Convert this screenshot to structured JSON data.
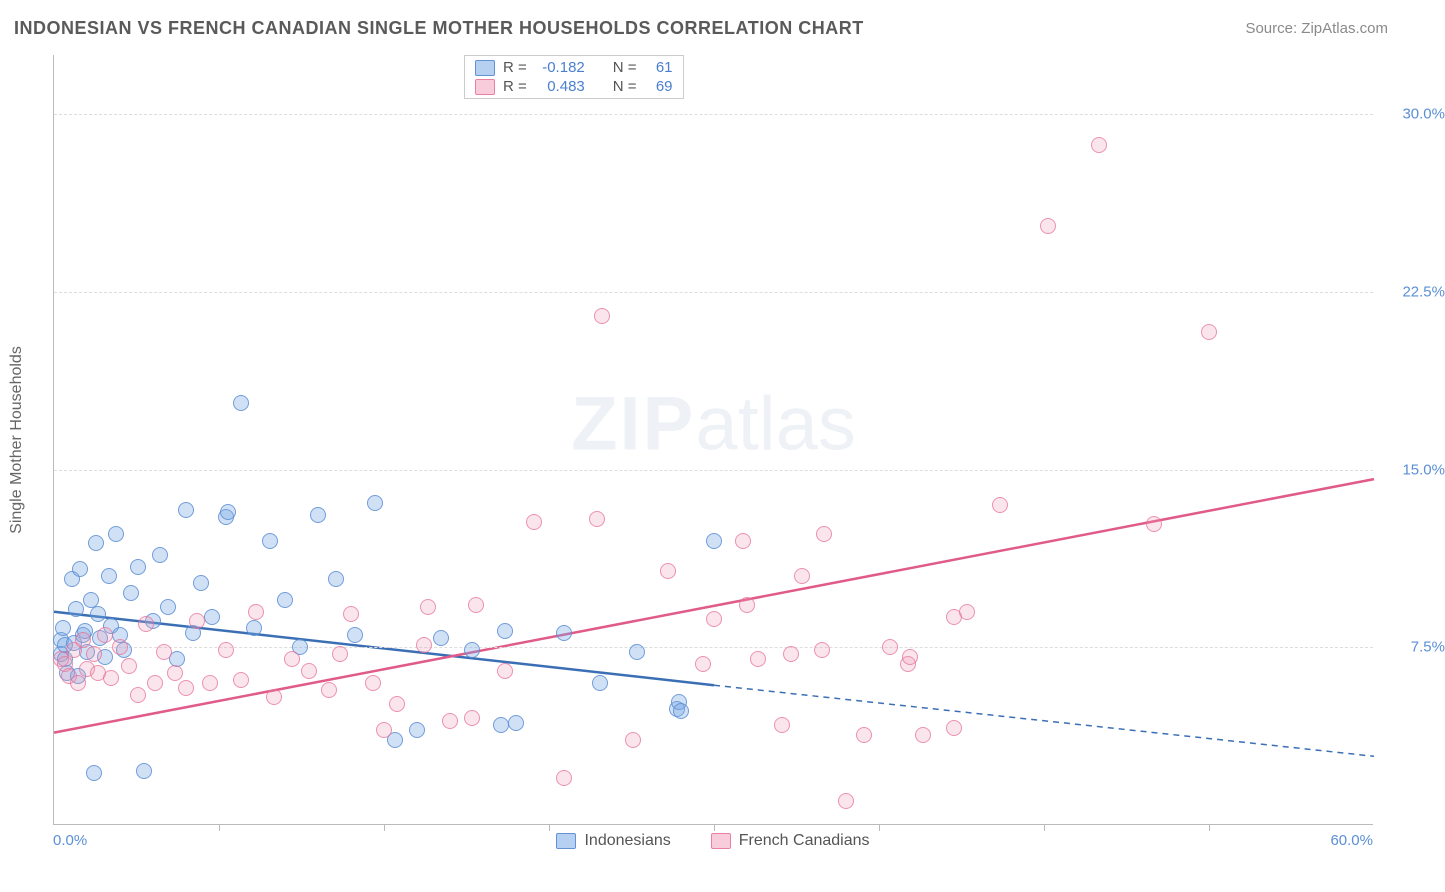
{
  "title": "INDONESIAN VS FRENCH CANADIAN SINGLE MOTHER HOUSEHOLDS CORRELATION CHART",
  "source": "Source: ZipAtlas.com",
  "ylabel": "Single Mother Households",
  "watermark_zip": "ZIP",
  "watermark_atlas": "atlas",
  "chart": {
    "type": "scatter",
    "xlim": [
      0,
      60
    ],
    "ylim": [
      0,
      32.5
    ],
    "x_axis": {
      "min_label": "0.0%",
      "max_label": "60.0%",
      "tick_positions": [
        7.5,
        15,
        22.5,
        30,
        37.5,
        45,
        52.5
      ]
    },
    "y_axis": {
      "gridlines": [
        {
          "value": 7.5,
          "label": "7.5%"
        },
        {
          "value": 15.0,
          "label": "15.0%"
        },
        {
          "value": 22.5,
          "label": "22.5%"
        },
        {
          "value": 30.0,
          "label": "30.0%"
        }
      ]
    },
    "background_color": "#ffffff",
    "grid_color": "#dddddd",
    "series": [
      {
        "name": "Indonesians",
        "class": "blue",
        "fill": "rgba(120,170,230,0.35)",
        "stroke": "rgba(90,140,210,0.8)",
        "r_label": "R =",
        "r_value": "-0.182",
        "n_label": "N =",
        "n_value": "61",
        "regression": {
          "solid": {
            "x1": 0,
            "y1": 9.0,
            "x2": 30,
            "y2": 5.9
          },
          "dashed": {
            "x1": 30,
            "y1": 5.9,
            "x2": 60,
            "y2": 2.9
          },
          "color": "#3b6fb5",
          "width": 2.5
        },
        "points": [
          [
            0.3,
            7.8
          ],
          [
            0.3,
            7.2
          ],
          [
            0.4,
            8.3
          ],
          [
            0.5,
            7.0
          ],
          [
            0.5,
            7.6
          ],
          [
            0.6,
            6.4
          ],
          [
            0.8,
            10.4
          ],
          [
            0.9,
            7.7
          ],
          [
            1.0,
            9.1
          ],
          [
            1.1,
            6.3
          ],
          [
            1.2,
            10.8
          ],
          [
            1.3,
            8.0
          ],
          [
            1.4,
            8.2
          ],
          [
            1.5,
            7.3
          ],
          [
            1.7,
            9.5
          ],
          [
            1.8,
            2.2
          ],
          [
            1.9,
            11.9
          ],
          [
            2.0,
            8.9
          ],
          [
            2.1,
            7.9
          ],
          [
            2.3,
            7.1
          ],
          [
            2.5,
            10.5
          ],
          [
            2.6,
            8.4
          ],
          [
            2.8,
            12.3
          ],
          [
            3.0,
            8.0
          ],
          [
            3.2,
            7.4
          ],
          [
            3.5,
            9.8
          ],
          [
            3.8,
            10.9
          ],
          [
            4.1,
            2.3
          ],
          [
            4.5,
            8.6
          ],
          [
            4.8,
            11.4
          ],
          [
            5.2,
            9.2
          ],
          [
            5.6,
            7.0
          ],
          [
            6.0,
            13.3
          ],
          [
            6.3,
            8.1
          ],
          [
            6.7,
            10.2
          ],
          [
            7.2,
            8.8
          ],
          [
            7.8,
            13.0
          ],
          [
            7.9,
            13.2
          ],
          [
            8.5,
            17.8
          ],
          [
            9.1,
            8.3
          ],
          [
            9.8,
            12.0
          ],
          [
            10.5,
            9.5
          ],
          [
            11.2,
            7.5
          ],
          [
            12.0,
            13.1
          ],
          [
            12.8,
            10.4
          ],
          [
            13.7,
            8.0
          ],
          [
            14.6,
            13.6
          ],
          [
            15.5,
            3.6
          ],
          [
            16.5,
            4.0
          ],
          [
            17.6,
            7.9
          ],
          [
            19.0,
            7.4
          ],
          [
            20.3,
            4.2
          ],
          [
            20.5,
            8.2
          ],
          [
            21.0,
            4.3
          ],
          [
            23.2,
            8.1
          ],
          [
            24.8,
            6.0
          ],
          [
            26.5,
            7.3
          ],
          [
            28.3,
            4.9
          ],
          [
            28.4,
            5.2
          ],
          [
            28.5,
            4.8
          ],
          [
            30.0,
            12.0
          ]
        ]
      },
      {
        "name": "French Canadians",
        "class": "pink",
        "fill": "rgba(240,150,180,0.25)",
        "stroke": "rgba(230,110,150,0.7)",
        "r_label": "R =",
        "r_value": "0.483",
        "n_label": "N =",
        "n_value": "69",
        "regression": {
          "solid": {
            "x1": 0,
            "y1": 3.9,
            "x2": 60,
            "y2": 14.6
          },
          "color": "#e05a8a",
          "width": 2.5
        },
        "points": [
          [
            0.3,
            7.0
          ],
          [
            0.5,
            6.8
          ],
          [
            0.7,
            6.3
          ],
          [
            0.9,
            7.4
          ],
          [
            1.1,
            6.0
          ],
          [
            1.3,
            7.8
          ],
          [
            1.5,
            6.6
          ],
          [
            1.8,
            7.2
          ],
          [
            2.0,
            6.4
          ],
          [
            2.3,
            8.0
          ],
          [
            2.6,
            6.2
          ],
          [
            3.0,
            7.5
          ],
          [
            3.4,
            6.7
          ],
          [
            3.8,
            5.5
          ],
          [
            4.2,
            8.5
          ],
          [
            4.6,
            6.0
          ],
          [
            5.0,
            7.3
          ],
          [
            5.5,
            6.4
          ],
          [
            6.0,
            5.8
          ],
          [
            6.5,
            8.6
          ],
          [
            7.1,
            6.0
          ],
          [
            7.8,
            7.4
          ],
          [
            8.5,
            6.1
          ],
          [
            9.2,
            9.0
          ],
          [
            10.0,
            5.4
          ],
          [
            10.8,
            7.0
          ],
          [
            11.6,
            6.5
          ],
          [
            12.5,
            5.7
          ],
          [
            13.5,
            8.9
          ],
          [
            14.5,
            6.0
          ],
          [
            15.6,
            5.1
          ],
          [
            16.8,
            7.6
          ],
          [
            18.0,
            4.4
          ],
          [
            19.2,
            9.3
          ],
          [
            20.5,
            6.5
          ],
          [
            21.8,
            12.8
          ],
          [
            23.2,
            2.0
          ],
          [
            24.7,
            12.9
          ],
          [
            24.9,
            21.5
          ],
          [
            26.3,
            3.6
          ],
          [
            27.9,
            10.7
          ],
          [
            29.5,
            6.8
          ],
          [
            31.3,
            12.0
          ],
          [
            33.1,
            4.2
          ],
          [
            34.9,
            7.4
          ],
          [
            35.0,
            12.3
          ],
          [
            36.8,
            3.8
          ],
          [
            38.8,
            6.8
          ],
          [
            38.9,
            7.1
          ],
          [
            40.9,
            4.1
          ],
          [
            40.9,
            8.8
          ],
          [
            43.0,
            13.5
          ],
          [
            45.2,
            25.3
          ],
          [
            47.5,
            28.7
          ],
          [
            50.0,
            12.7
          ],
          [
            52.5,
            20.8
          ],
          [
            36.0,
            1.0
          ],
          [
            30.0,
            8.7
          ],
          [
            32.0,
            7.0
          ],
          [
            34.0,
            10.5
          ],
          [
            31.5,
            9.3
          ],
          [
            33.5,
            7.2
          ],
          [
            38.0,
            7.5
          ],
          [
            39.5,
            3.8
          ],
          [
            41.5,
            9.0
          ],
          [
            19.0,
            4.5
          ],
          [
            17.0,
            9.2
          ],
          [
            15.0,
            4.0
          ],
          [
            13.0,
            7.2
          ]
        ]
      }
    ]
  }
}
